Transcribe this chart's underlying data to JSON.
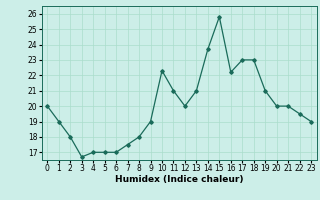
{
  "x": [
    0,
    1,
    2,
    3,
    4,
    5,
    6,
    7,
    8,
    9,
    10,
    11,
    12,
    13,
    14,
    15,
    16,
    17,
    18,
    19,
    20,
    21,
    22,
    23
  ],
  "y": [
    20,
    19,
    18,
    16.7,
    17,
    17,
    17,
    17.5,
    18,
    19,
    22.3,
    21,
    20,
    21,
    23.7,
    25.8,
    22.2,
    23,
    23,
    21,
    20,
    20,
    19.5,
    19
  ],
  "xlabel": "Humidex (Indice chaleur)",
  "line_color": "#1a6b5a",
  "marker": "D",
  "marker_size": 1.8,
  "bg_color": "#cceee8",
  "grid_color": "#aaddcc",
  "xlim": [
    -0.5,
    23.5
  ],
  "ylim": [
    16.5,
    26.5
  ],
  "yticks": [
    17,
    18,
    19,
    20,
    21,
    22,
    23,
    24,
    25,
    26
  ],
  "xticks": [
    0,
    1,
    2,
    3,
    4,
    5,
    6,
    7,
    8,
    9,
    10,
    11,
    12,
    13,
    14,
    15,
    16,
    17,
    18,
    19,
    20,
    21,
    22,
    23
  ],
  "tick_fontsize": 5.5,
  "xlabel_fontsize": 6.5
}
